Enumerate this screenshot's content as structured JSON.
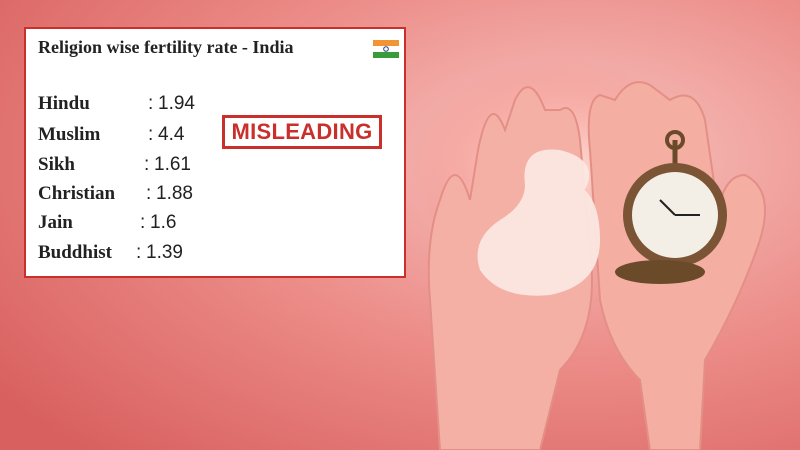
{
  "card": {
    "title": "Religion wise fertility rate - India",
    "separator": ":",
    "rows": [
      {
        "religion": "Hindu",
        "rate": "1.94"
      },
      {
        "religion": "Muslim",
        "rate": "4.4"
      },
      {
        "religion": "Sikh",
        "rate": "1.61"
      },
      {
        "religion": "Christian",
        "rate": "1.88"
      },
      {
        "religion": "Jain",
        "rate": "1.6"
      },
      {
        "religion": "Buddhist",
        "rate": "1.39"
      }
    ]
  },
  "stamp": {
    "label": "MISLEADING"
  }
}
